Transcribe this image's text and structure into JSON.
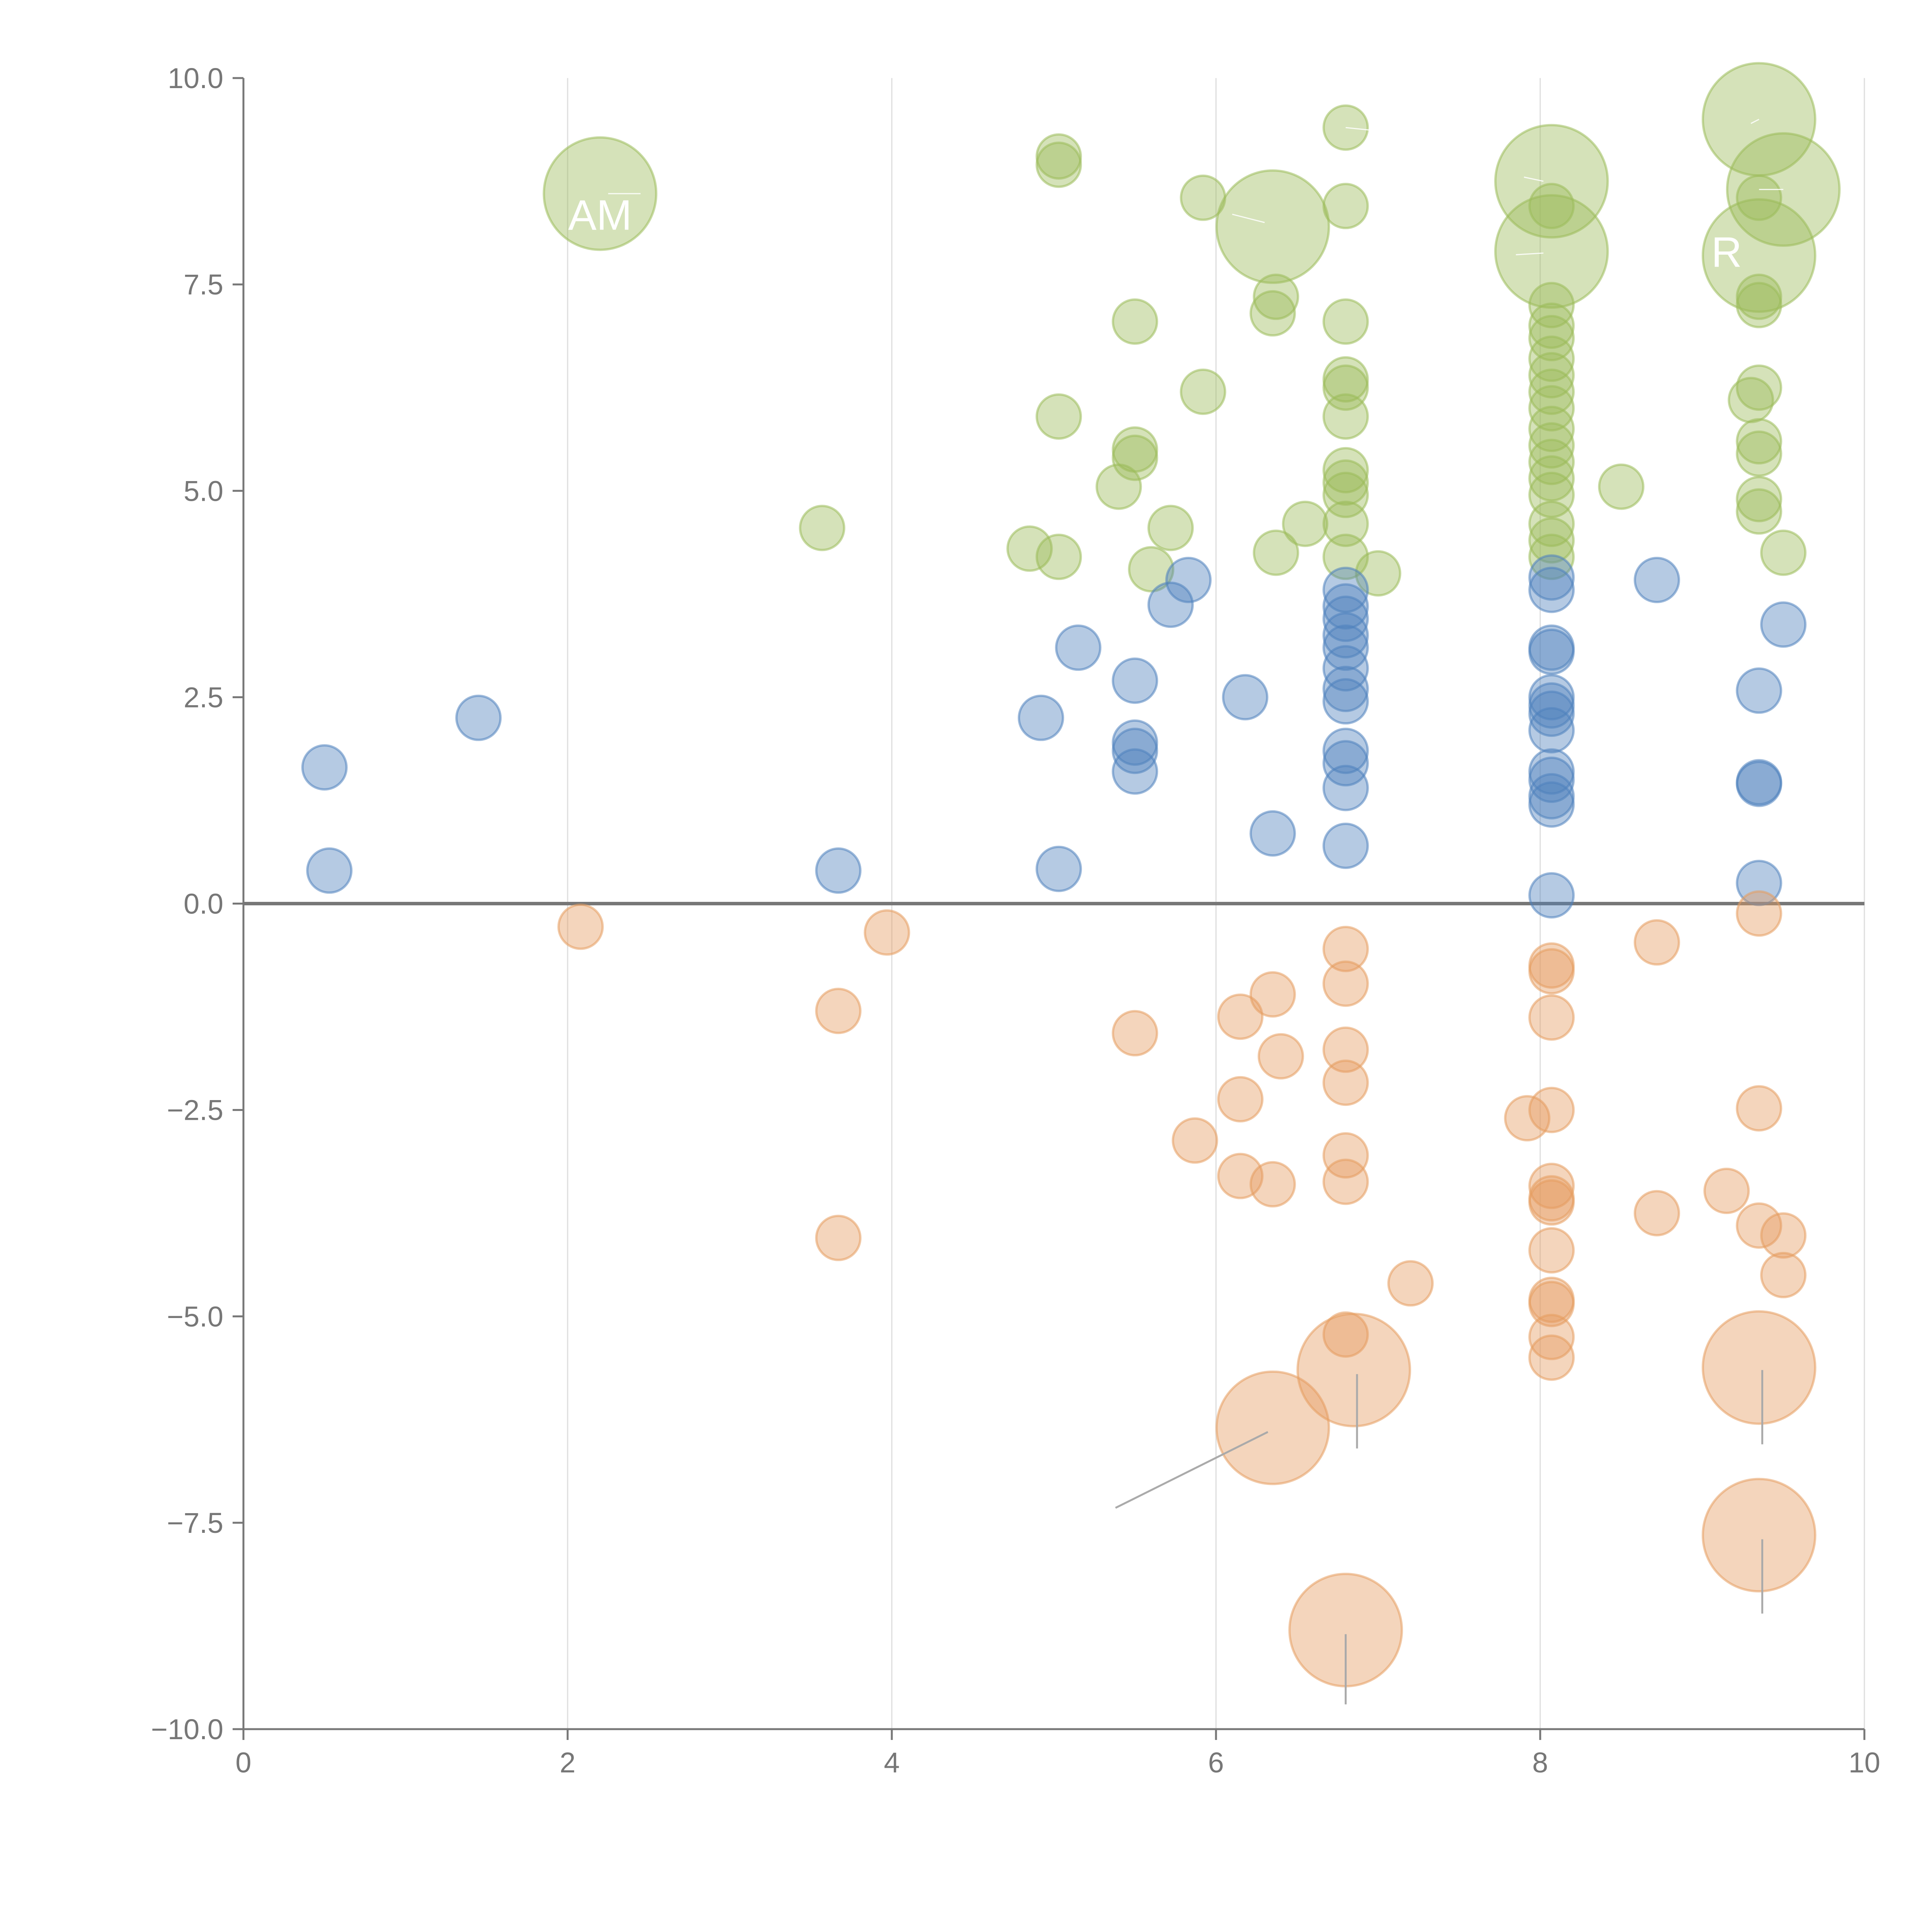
{
  "chart_data": {
    "type": "scatter",
    "title": "",
    "xlabel": "",
    "ylabel": "",
    "xlim": [
      0,
      10
    ],
    "ylim": [
      -10,
      10
    ],
    "x_ticks": [
      "0",
      "2",
      "4",
      "6",
      "8",
      "10"
    ],
    "y_ticks": [
      "10.0",
      "7.5",
      "5.0",
      "2.5",
      "0.0",
      "−2.5",
      "−5.0",
      "−7.5",
      "−10.0"
    ],
    "x_tick_values": [
      0,
      2,
      4,
      6,
      8,
      10
    ],
    "y_tick_values": [
      10,
      7.5,
      5,
      2.5,
      0,
      -2.5,
      -5,
      -7.5,
      -10
    ],
    "grid": "vertical",
    "zero_line": true,
    "colors": {
      "green": "#9bbb59",
      "blue": "#4f81bd",
      "orange": "#e59c5f",
      "axis": "#777777",
      "grid": "#dddddd"
    },
    "series": [
      {
        "name": "green",
        "color": "#9bbb59",
        "points": [
          {
            "x": 2.2,
            "y": 8.6,
            "s": 3
          },
          {
            "x": 5.03,
            "y": 9.05,
            "s": 1
          },
          {
            "x": 5.03,
            "y": 8.95,
            "s": 1
          },
          {
            "x": 5.92,
            "y": 8.55,
            "s": 1
          },
          {
            "x": 6.35,
            "y": 8.2,
            "s": 3
          },
          {
            "x": 6.8,
            "y": 9.4,
            "s": 1
          },
          {
            "x": 6.8,
            "y": 8.45,
            "s": 1
          },
          {
            "x": 8.07,
            "y": 8.75,
            "s": 3
          },
          {
            "x": 8.07,
            "y": 7.9,
            "s": 3
          },
          {
            "x": 8.07,
            "y": 8.45,
            "s": 1
          },
          {
            "x": 9.35,
            "y": 9.5,
            "s": 3
          },
          {
            "x": 9.5,
            "y": 8.65,
            "s": 3
          },
          {
            "x": 9.35,
            "y": 7.85,
            "s": 3
          },
          {
            "x": 9.35,
            "y": 8.55,
            "s": 1
          },
          {
            "x": 5.5,
            "y": 7.05,
            "s": 1
          },
          {
            "x": 6.37,
            "y": 7.35,
            "s": 1
          },
          {
            "x": 6.35,
            "y": 7.15,
            "s": 1
          },
          {
            "x": 6.8,
            "y": 7.05,
            "s": 1
          },
          {
            "x": 8.07,
            "y": 7.25,
            "s": 1
          },
          {
            "x": 8.07,
            "y": 7.0,
            "s": 1
          },
          {
            "x": 8.07,
            "y": 6.85,
            "s": 1
          },
          {
            "x": 8.07,
            "y": 6.6,
            "s": 1
          },
          {
            "x": 8.07,
            "y": 6.4,
            "s": 1
          },
          {
            "x": 8.07,
            "y": 6.2,
            "s": 1
          },
          {
            "x": 8.07,
            "y": 6.0,
            "s": 1
          },
          {
            "x": 8.07,
            "y": 5.75,
            "s": 1
          },
          {
            "x": 8.07,
            "y": 5.55,
            "s": 1
          },
          {
            "x": 8.07,
            "y": 5.35,
            "s": 1
          },
          {
            "x": 8.07,
            "y": 5.15,
            "s": 1
          },
          {
            "x": 8.07,
            "y": 4.95,
            "s": 1
          },
          {
            "x": 8.07,
            "y": 4.6,
            "s": 1
          },
          {
            "x": 8.07,
            "y": 4.4,
            "s": 1
          },
          {
            "x": 8.07,
            "y": 4.2,
            "s": 1
          },
          {
            "x": 9.35,
            "y": 7.35,
            "s": 1
          },
          {
            "x": 9.35,
            "y": 7.25,
            "s": 1
          },
          {
            "x": 9.35,
            "y": 6.25,
            "s": 1
          },
          {
            "x": 9.3,
            "y": 6.1,
            "s": 1
          },
          {
            "x": 9.35,
            "y": 5.6,
            "s": 1
          },
          {
            "x": 9.35,
            "y": 5.45,
            "s": 1
          },
          {
            "x": 9.35,
            "y": 4.9,
            "s": 1
          },
          {
            "x": 9.35,
            "y": 4.75,
            "s": 1
          },
          {
            "x": 9.5,
            "y": 4.25,
            "s": 1
          },
          {
            "x": 8.5,
            "y": 5.05,
            "s": 1
          },
          {
            "x": 6.8,
            "y": 6.35,
            "s": 1
          },
          {
            "x": 6.8,
            "y": 6.25,
            "s": 1
          },
          {
            "x": 6.8,
            "y": 5.9,
            "s": 1
          },
          {
            "x": 5.92,
            "y": 6.2,
            "s": 1
          },
          {
            "x": 5.03,
            "y": 5.9,
            "s": 1
          },
          {
            "x": 5.5,
            "y": 5.5,
            "s": 1
          },
          {
            "x": 5.5,
            "y": 5.4,
            "s": 1
          },
          {
            "x": 5.4,
            "y": 5.05,
            "s": 1
          },
          {
            "x": 6.8,
            "y": 5.25,
            "s": 1
          },
          {
            "x": 6.8,
            "y": 5.1,
            "s": 1
          },
          {
            "x": 6.8,
            "y": 4.95,
            "s": 1
          },
          {
            "x": 6.8,
            "y": 4.6,
            "s": 1
          },
          {
            "x": 6.8,
            "y": 4.2,
            "s": 1
          },
          {
            "x": 6.55,
            "y": 4.6,
            "s": 1
          },
          {
            "x": 5.72,
            "y": 4.55,
            "s": 1
          },
          {
            "x": 7.0,
            "y": 4.0,
            "s": 1
          },
          {
            "x": 6.37,
            "y": 4.25,
            "s": 1
          },
          {
            "x": 5.6,
            "y": 4.05,
            "s": 1
          },
          {
            "x": 4.85,
            "y": 4.3,
            "s": 1
          },
          {
            "x": 5.03,
            "y": 4.2,
            "s": 1
          },
          {
            "x": 3.57,
            "y": 4.55,
            "s": 1
          }
        ]
      },
      {
        "name": "blue",
        "color": "#4f81bd",
        "points": [
          {
            "x": 0.5,
            "y": 1.65,
            "s": 1
          },
          {
            "x": 0.53,
            "y": 0.4,
            "s": 1
          },
          {
            "x": 1.45,
            "y": 2.25,
            "s": 1
          },
          {
            "x": 3.67,
            "y": 0.4,
            "s": 1
          },
          {
            "x": 5.03,
            "y": 0.42,
            "s": 1
          },
          {
            "x": 4.92,
            "y": 2.25,
            "s": 1
          },
          {
            "x": 5.15,
            "y": 3.1,
            "s": 1
          },
          {
            "x": 5.5,
            "y": 2.7,
            "s": 1
          },
          {
            "x": 5.5,
            "y": 1.95,
            "s": 1
          },
          {
            "x": 5.5,
            "y": 1.85,
            "s": 1
          },
          {
            "x": 5.5,
            "y": 1.6,
            "s": 1
          },
          {
            "x": 5.72,
            "y": 3.62,
            "s": 1
          },
          {
            "x": 5.83,
            "y": 3.92,
            "s": 1
          },
          {
            "x": 6.18,
            "y": 2.5,
            "s": 1
          },
          {
            "x": 6.35,
            "y": 0.85,
            "s": 1
          },
          {
            "x": 6.8,
            "y": 3.8,
            "s": 1
          },
          {
            "x": 6.8,
            "y": 3.6,
            "s": 1
          },
          {
            "x": 6.8,
            "y": 3.45,
            "s": 1
          },
          {
            "x": 6.8,
            "y": 3.25,
            "s": 1
          },
          {
            "x": 6.8,
            "y": 3.1,
            "s": 1
          },
          {
            "x": 6.8,
            "y": 2.85,
            "s": 1
          },
          {
            "x": 6.8,
            "y": 2.6,
            "s": 1
          },
          {
            "x": 6.8,
            "y": 2.45,
            "s": 1
          },
          {
            "x": 6.8,
            "y": 1.85,
            "s": 1
          },
          {
            "x": 6.8,
            "y": 1.7,
            "s": 1
          },
          {
            "x": 6.8,
            "y": 1.4,
            "s": 1
          },
          {
            "x": 6.8,
            "y": 0.7,
            "s": 1
          },
          {
            "x": 8.07,
            "y": 3.95,
            "s": 1
          },
          {
            "x": 8.07,
            "y": 3.8,
            "s": 1
          },
          {
            "x": 8.07,
            "y": 3.1,
            "s": 1
          },
          {
            "x": 8.07,
            "y": 3.05,
            "s": 1
          },
          {
            "x": 8.07,
            "y": 2.5,
            "s": 1
          },
          {
            "x": 8.07,
            "y": 2.4,
            "s": 1
          },
          {
            "x": 8.07,
            "y": 2.3,
            "s": 1
          },
          {
            "x": 8.07,
            "y": 2.1,
            "s": 1
          },
          {
            "x": 8.07,
            "y": 1.6,
            "s": 1
          },
          {
            "x": 8.07,
            "y": 1.5,
            "s": 1
          },
          {
            "x": 8.07,
            "y": 1.3,
            "s": 1
          },
          {
            "x": 8.07,
            "y": 1.2,
            "s": 1
          },
          {
            "x": 8.07,
            "y": 0.1,
            "s": 1
          },
          {
            "x": 8.72,
            "y": 3.92,
            "s": 1
          },
          {
            "x": 9.5,
            "y": 3.38,
            "s": 1
          },
          {
            "x": 9.35,
            "y": 2.58,
            "s": 1
          },
          {
            "x": 9.35,
            "y": 1.47,
            "s": 1
          },
          {
            "x": 9.35,
            "y": 1.45,
            "s": 1
          },
          {
            "x": 9.35,
            "y": 0.25,
            "s": 1
          }
        ]
      },
      {
        "name": "orange",
        "color": "#e59c5f",
        "points": [
          {
            "x": 2.08,
            "y": -0.28,
            "s": 1
          },
          {
            "x": 3.97,
            "y": -0.35,
            "s": 1
          },
          {
            "x": 3.67,
            "y": -1.3,
            "s": 1
          },
          {
            "x": 3.67,
            "y": -4.05,
            "s": 1
          },
          {
            "x": 5.5,
            "y": -1.57,
            "s": 1
          },
          {
            "x": 5.87,
            "y": -2.87,
            "s": 1
          },
          {
            "x": 6.15,
            "y": -1.37,
            "s": 1
          },
          {
            "x": 6.15,
            "y": -2.37,
            "s": 1
          },
          {
            "x": 6.15,
            "y": -3.3,
            "s": 1
          },
          {
            "x": 6.35,
            "y": -1.1,
            "s": 1
          },
          {
            "x": 6.4,
            "y": -1.85,
            "s": 1
          },
          {
            "x": 6.35,
            "y": -3.4,
            "s": 1
          },
          {
            "x": 6.8,
            "y": -0.55,
            "s": 1
          },
          {
            "x": 6.8,
            "y": -0.97,
            "s": 1
          },
          {
            "x": 6.8,
            "y": -1.77,
            "s": 1
          },
          {
            "x": 6.8,
            "y": -2.17,
            "s": 1
          },
          {
            "x": 6.8,
            "y": -3.05,
            "s": 1
          },
          {
            "x": 6.8,
            "y": -3.37,
            "s": 1
          },
          {
            "x": 6.8,
            "y": -5.22,
            "s": 1
          },
          {
            "x": 7.2,
            "y": -4.6,
            "s": 1
          },
          {
            "x": 7.92,
            "y": -2.6,
            "s": 1
          },
          {
            "x": 8.07,
            "y": -0.75,
            "s": 1
          },
          {
            "x": 8.07,
            "y": -0.82,
            "s": 1
          },
          {
            "x": 8.07,
            "y": -1.38,
            "s": 1
          },
          {
            "x": 8.07,
            "y": -2.5,
            "s": 1
          },
          {
            "x": 8.07,
            "y": -3.42,
            "s": 1
          },
          {
            "x": 8.07,
            "y": -3.57,
            "s": 1
          },
          {
            "x": 8.07,
            "y": -3.62,
            "s": 1
          },
          {
            "x": 8.07,
            "y": -4.2,
            "s": 1
          },
          {
            "x": 8.07,
            "y": -4.8,
            "s": 1
          },
          {
            "x": 8.07,
            "y": -4.85,
            "s": 1
          },
          {
            "x": 8.07,
            "y": -5.25,
            "s": 1
          },
          {
            "x": 8.07,
            "y": -5.5,
            "s": 1
          },
          {
            "x": 8.72,
            "y": -0.47,
            "s": 1
          },
          {
            "x": 8.72,
            "y": -3.75,
            "s": 1
          },
          {
            "x": 9.15,
            "y": -3.48,
            "s": 1
          },
          {
            "x": 9.35,
            "y": -0.12,
            "s": 1
          },
          {
            "x": 9.35,
            "y": -2.48,
            "s": 1
          },
          {
            "x": 9.35,
            "y": -3.9,
            "s": 1
          },
          {
            "x": 9.5,
            "y": -4.02,
            "s": 1
          },
          {
            "x": 9.5,
            "y": -4.5,
            "s": 1
          },
          {
            "x": 6.35,
            "y": -6.35,
            "s": 3
          },
          {
            "x": 6.85,
            "y": -5.65,
            "s": 3
          },
          {
            "x": 6.8,
            "y": -8.8,
            "s": 3
          },
          {
            "x": 9.35,
            "y": -5.62,
            "s": 3
          },
          {
            "x": 9.35,
            "y": -7.65,
            "s": 3
          }
        ]
      }
    ],
    "annotations": [
      {
        "text": "AM",
        "x": 2.2,
        "y": 8.6,
        "lx": 2.2,
        "ly": 8.35
      },
      {
        "text": "R",
        "x": 9.35,
        "y": 7.85,
        "lx": 9.15,
        "ly": 7.9
      }
    ],
    "leader_lines": [
      {
        "x1": 6.32,
        "y1": -6.4,
        "x2": 5.38,
        "y2": -7.32
      },
      {
        "x1": 6.87,
        "y1": -5.7,
        "x2": 6.87,
        "y2": -6.6
      },
      {
        "x1": 6.8,
        "y1": -8.85,
        "x2": 6.8,
        "y2": -9.7
      },
      {
        "x1": 9.37,
        "y1": -5.65,
        "x2": 9.37,
        "y2": -6.55
      },
      {
        "x1": 9.37,
        "y1": -7.7,
        "x2": 9.37,
        "y2": -8.6
      },
      {
        "x1": 2.25,
        "y1": 8.6,
        "x2": 2.45,
        "y2": 8.6
      },
      {
        "x1": 6.3,
        "y1": 8.25,
        "x2": 6.1,
        "y2": 8.35
      },
      {
        "x1": 8.02,
        "y1": 7.88,
        "x2": 7.85,
        "y2": 7.86
      },
      {
        "x1": 8.02,
        "y1": 8.75,
        "x2": 7.9,
        "y2": 8.8
      },
      {
        "x1": 9.3,
        "y1": 9.45,
        "x2": 9.35,
        "y2": 9.5
      },
      {
        "x1": 9.35,
        "y1": 8.65,
        "x2": 9.5,
        "y2": 8.65
      },
      {
        "x1": 6.8,
        "y1": 9.4,
        "x2": 6.95,
        "y2": 9.37
      }
    ]
  }
}
